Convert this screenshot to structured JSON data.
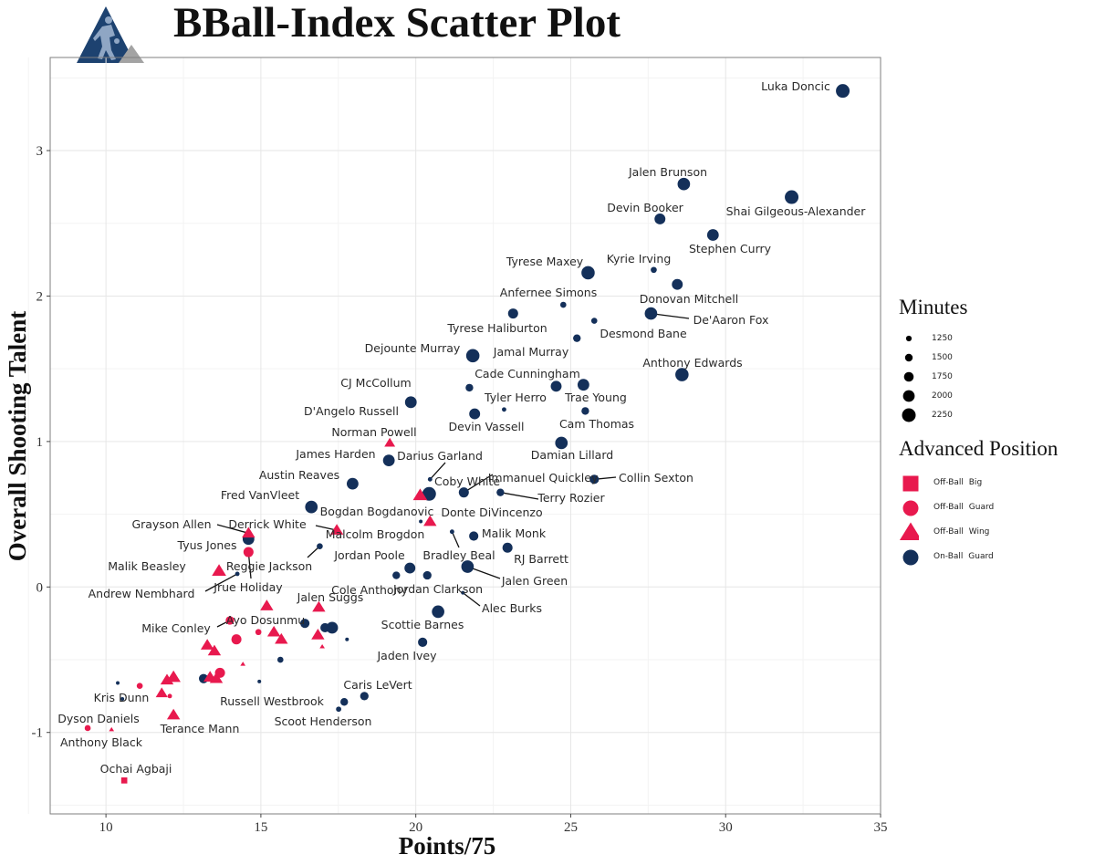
{
  "title": "BBall-Index Scatter Plot",
  "colors": {
    "Off-Ball Big": "#e8194e",
    "Off-Ball Guard": "#e8194e",
    "Off-Ball Wing": "#e8194e",
    "On-Ball Guard": "#14305a",
    "logo_primary": "#1d4270",
    "logo_secondary": "#a3a3a3"
  },
  "chart_data": {
    "type": "scatter",
    "title": "BBall-Index Scatter Plot",
    "xlabel": "Points/75",
    "ylabel": "Overall Shooting Talent",
    "xlim": [
      8.2,
      35.0
    ],
    "ylim": [
      -1.56,
      3.64
    ],
    "xticks": [
      10,
      15,
      20,
      25,
      30,
      35
    ],
    "yticks": [
      -1,
      0,
      1,
      2,
      3
    ],
    "grid": true,
    "legend": {
      "placement": "right",
      "size_title": "Minutes",
      "size_values": [
        1250,
        1500,
        1750,
        2000,
        2250
      ],
      "shape_title": "Advanced Position",
      "positions": [
        {
          "label": "Off-Ball Big",
          "shape": "square"
        },
        {
          "label": "Off-Ball Guard",
          "shape": "circle"
        },
        {
          "label": "Off-Ball Wing",
          "shape": "triangle"
        },
        {
          "label": "On-Ball Guard",
          "shape": "circle"
        }
      ]
    },
    "columns": [
      "name",
      "x",
      "y",
      "minutes",
      "position"
    ],
    "points": [
      [
        "Luka Doncic",
        33.78,
        3.41,
        2250,
        "On-Ball Guard"
      ],
      [
        "Jalen Brunson",
        28.65,
        2.77,
        2100,
        "On-Ball Guard"
      ],
      [
        "Shai Gilgeous-Alexander",
        32.13,
        2.68,
        2250,
        "On-Ball Guard"
      ],
      [
        "Devin Booker",
        27.88,
        2.53,
        1900,
        "On-Ball Guard"
      ],
      [
        "Stephen Curry",
        29.59,
        2.42,
        2000,
        "On-Ball Guard"
      ],
      [
        "Tyrese Maxey",
        25.56,
        2.16,
        2200,
        "On-Ball Guard"
      ],
      [
        "Kyrie Irving",
        27.68,
        2.18,
        1300,
        "On-Ball Guard"
      ],
      [
        "Donovan Mitchell",
        28.44,
        2.08,
        1900,
        "On-Ball Guard"
      ],
      [
        "Anfernee Simons",
        24.76,
        1.94,
        1300,
        "On-Ball Guard"
      ],
      [
        "Tyrese Haliburton",
        23.14,
        1.88,
        1800,
        "On-Ball Guard"
      ],
      [
        "De'Aaron Fox",
        27.59,
        1.88,
        2100,
        "On-Ball Guard"
      ],
      [
        "Desmond Bane",
        25.76,
        1.83,
        1300,
        "On-Ball Guard"
      ],
      [
        "Jamal Murray",
        25.2,
        1.71,
        1500,
        "On-Ball Guard"
      ],
      [
        "Dejounte Murray",
        21.84,
        1.59,
        2200,
        "On-Ball Guard"
      ],
      [
        "Anthony Edwards",
        28.59,
        1.46,
        2200,
        "On-Ball Guard"
      ],
      [
        "Cade Cunningham",
        24.53,
        1.38,
        1900,
        "On-Ball Guard"
      ],
      [
        "Trae Young",
        25.41,
        1.39,
        2000,
        "On-Ball Guard"
      ],
      [
        "CJ McCollum",
        21.73,
        1.37,
        1500,
        "On-Ball Guard"
      ],
      [
        "D'Angelo Russell",
        19.84,
        1.27,
        2000,
        "On-Ball Guard"
      ],
      [
        "Tyler Herro",
        22.85,
        1.22,
        1100,
        "On-Ball Guard"
      ],
      [
        "Devin Vassell",
        21.9,
        1.19,
        1900,
        "On-Ball Guard"
      ],
      [
        "Cam Thomas",
        25.47,
        1.21,
        1500,
        "On-Ball Guard"
      ],
      [
        "Damian Lillard",
        24.7,
        0.99,
        2100,
        "On-Ball Guard"
      ],
      [
        "Norman Powell",
        19.16,
        0.99,
        1500,
        "Off-Ball Wing"
      ],
      [
        "James Harden",
        19.13,
        0.87,
        2000,
        "On-Ball Guard"
      ],
      [
        "Darius Garland",
        20.46,
        0.74,
        1100,
        "On-Ball Guard"
      ],
      [
        "Austin Reaves",
        17.96,
        0.71,
        2000,
        "On-Ball Guard"
      ],
      [
        "Coby White",
        20.43,
        0.64,
        2250,
        "On-Ball Guard"
      ],
      [
        "Fred VanVleet",
        16.63,
        0.55,
        2100,
        "On-Ball Guard"
      ],
      [
        "Bogdan Bogdanovic",
        20.14,
        0.63,
        1800,
        "Off-Ball Wing"
      ],
      [
        "Immanuel Quickley",
        21.55,
        0.65,
        1800,
        "On-Ball Guard"
      ],
      [
        "Terry Rozier",
        22.73,
        0.65,
        1500,
        "On-Ball Guard"
      ],
      [
        "Collin Sexton",
        25.76,
        0.74,
        1700,
        "On-Ball Guard"
      ],
      [
        "Donte DiVincenzo",
        20.46,
        0.45,
        1700,
        "Off-Ball Wing"
      ],
      [
        "Malcolm Brogdon",
        20.16,
        0.45,
        1000,
        "On-Ball Guard"
      ],
      [
        "Grayson Allen",
        14.6,
        0.37,
        1700,
        "Off-Ball Wing"
      ],
      [
        "Derrick White",
        17.45,
        0.39,
        1700,
        "Off-Ball Wing"
      ],
      [
        "Tyus Jones",
        14.6,
        0.33,
        2000,
        "On-Ball Guard"
      ],
      [
        "Jrue Holiday",
        14.6,
        0.24,
        1800,
        "Off-Ball Guard"
      ],
      [
        "Reggie Jackson",
        16.9,
        0.28,
        1300,
        "On-Ball Guard"
      ],
      [
        "Malik Beasley",
        13.65,
        0.11,
        1800,
        "Off-Ball Wing"
      ],
      [
        "Andrew Nembhard",
        14.24,
        0.09,
        1100,
        "On-Ball Guard"
      ],
      [
        "Jordan Poole",
        19.37,
        0.08,
        1500,
        "On-Ball Guard"
      ],
      [
        "Cole Anthony",
        19.81,
        0.13,
        1900,
        "On-Ball Guard"
      ],
      [
        "Jordan Clarkson",
        20.37,
        0.08,
        1600,
        "On-Ball Guard"
      ],
      [
        "Bradley Beal",
        21.17,
        0.38,
        1100,
        "On-Ball Guard"
      ],
      [
        "Malik Monk",
        21.87,
        0.35,
        1700,
        "On-Ball Guard"
      ],
      [
        "RJ Barrett",
        22.96,
        0.27,
        1800,
        "On-Ball Guard"
      ],
      [
        "Jalen Green",
        21.67,
        0.14,
        2100,
        "On-Ball Guard"
      ],
      [
        "Alec Burks",
        21.52,
        -0.04,
        1000,
        "On-Ball Guard"
      ],
      [
        "Scottie Barnes",
        20.72,
        -0.17,
        2100,
        "On-Ball Guard"
      ],
      [
        "Jaden Ivey",
        20.22,
        -0.38,
        1700,
        "On-Ball Guard"
      ],
      [
        "Jalen Suggs",
        16.87,
        -0.14,
        1700,
        "Off-Ball Wing"
      ],
      [
        "Mike Conley",
        14.0,
        -0.23,
        1600,
        "Off-Ball Guard"
      ],
      [
        "Ayo Dosunmu",
        16.42,
        -0.25,
        1700,
        "On-Ball Guard"
      ],
      [
        "Kris Dunn",
        10.53,
        -0.77,
        1000,
        "On-Ball Guard"
      ],
      [
        "Dyson Daniels",
        9.41,
        -0.97,
        1300,
        "Off-Ball Guard"
      ],
      [
        "Anthony Black",
        10.18,
        -0.98,
        1000,
        "Off-Ball Wing"
      ],
      [
        "Ochai Agbaji",
        10.59,
        -1.33,
        1300,
        "Off-Ball Big"
      ],
      [
        "Terance Mann",
        12.18,
        -0.88,
        1700,
        "Off-Ball Wing"
      ],
      [
        "Russell Westbrook",
        17.69,
        -0.79,
        1500,
        "On-Ball Guard"
      ],
      [
        "Scoot Henderson",
        17.51,
        -0.84,
        1200,
        "On-Ball Guard"
      ],
      [
        "Caris LeVert",
        18.34,
        -0.75,
        1600,
        "On-Ball Guard"
      ],
      [
        "",
        17.07,
        -0.28,
        1700,
        "On-Ball Guard"
      ],
      [
        "",
        17.3,
        -0.28,
        2000,
        "On-Ball Guard"
      ],
      [
        "",
        17.78,
        -0.36,
        1000,
        "On-Ball Guard"
      ],
      [
        "",
        15.63,
        -0.5,
        1300,
        "On-Ball Guard"
      ],
      [
        "",
        13.15,
        -0.63,
        1700,
        "On-Ball Guard"
      ],
      [
        "",
        10.38,
        -0.66,
        1000,
        "On-Ball Guard"
      ],
      [
        "",
        14.95,
        -0.65,
        1000,
        "On-Ball Guard"
      ],
      [
        "",
        15.19,
        -0.13,
        1700,
        "Off-Ball Wing"
      ],
      [
        "",
        15.42,
        -0.31,
        1700,
        "Off-Ball Wing"
      ],
      [
        "",
        15.66,
        -0.36,
        1700,
        "Off-Ball Wing"
      ],
      [
        "",
        16.84,
        -0.33,
        1700,
        "Off-Ball Wing"
      ],
      [
        "",
        16.98,
        -0.41,
        1000,
        "Off-Ball Wing"
      ],
      [
        "",
        13.27,
        -0.4,
        1700,
        "Off-Ball Wing"
      ],
      [
        "",
        13.5,
        -0.44,
        1700,
        "Off-Ball Wing"
      ],
      [
        "",
        14.42,
        -0.53,
        1000,
        "Off-Ball Wing"
      ],
      [
        "",
        13.36,
        -0.62,
        1700,
        "Off-Ball Wing"
      ],
      [
        "",
        13.56,
        -0.63,
        1700,
        "Off-Ball Wing"
      ],
      [
        "",
        11.97,
        -0.64,
        1700,
        "Off-Ball Wing"
      ],
      [
        "",
        12.18,
        -0.62,
        1800,
        "Off-Ball Wing"
      ],
      [
        "",
        11.8,
        -0.73,
        1600,
        "Off-Ball Wing"
      ],
      [
        "",
        14.21,
        -0.36,
        1800,
        "Off-Ball Guard"
      ],
      [
        "",
        14.92,
        -0.31,
        1300,
        "Off-Ball Guard"
      ],
      [
        "",
        13.68,
        -0.59,
        1800,
        "Off-Ball Guard"
      ],
      [
        "",
        11.09,
        -0.68,
        1300,
        "Off-Ball Guard"
      ],
      [
        "",
        12.06,
        -0.75,
        1100,
        "Off-Ball Guard"
      ]
    ]
  }
}
